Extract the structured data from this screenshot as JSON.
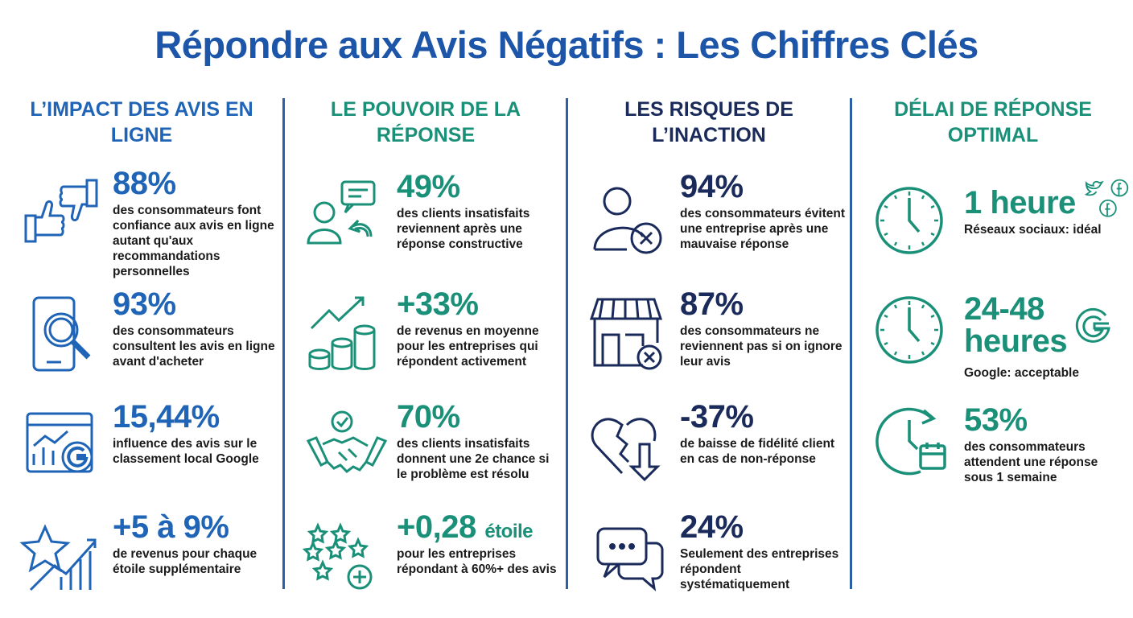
{
  "title": "Répondre aux Avis Négatifs : Les Chiffres Clés",
  "colors": {
    "blue": "#1f64b6",
    "green": "#1a9079",
    "navy": "#1a2a5a",
    "divider": "#2b5fa6"
  },
  "columns": [
    {
      "heading": "L’impact des avis en ligne",
      "items": [
        {
          "value": "88%",
          "text": "des consommateurs font confiance aux avis en ligne autant qu'aux recommandations personnelles",
          "icon": "thumbs-up-down-icon"
        },
        {
          "value": "93%",
          "text": "des consommateurs consultent les avis en ligne avant d'acheter",
          "icon": "phone-magnifier-icon"
        },
        {
          "value": "15,44%",
          "text": "influence des avis sur le classement local Google",
          "icon": "google-chart-icon"
        },
        {
          "value": "+5 à 9%",
          "text": "de revenus pour chaque étoile supplémentaire",
          "icon": "star-growth-icon"
        }
      ]
    },
    {
      "heading": "Le pouvoir de la réponse",
      "items": [
        {
          "value": "49%",
          "text": "des clients insatisfaits reviennent après une réponse constructive",
          "icon": "user-reply-icon"
        },
        {
          "value": "+33%",
          "text": "de revenus en moyenne pour les entreprises qui répondent activement",
          "icon": "coins-growth-icon"
        },
        {
          "value": "70%",
          "text": "des clients insatisfaits donnent une 2e chance si le problème est résolu",
          "icon": "handshake-icon"
        },
        {
          "value": "+0,28",
          "unit": "étoile",
          "text": "pour les entreprises répondant à 60%+ des avis",
          "icon": "stars-plus-icon"
        }
      ]
    },
    {
      "heading": "Les risques de l’inaction",
      "items": [
        {
          "value": "94%",
          "text": "des consommateurs évitent une entreprise après une mauvaise réponse",
          "icon": "user-x-icon"
        },
        {
          "value": "87%",
          "text": "des consommateurs ne reviennent pas si on ignore leur avis",
          "icon": "store-x-icon"
        },
        {
          "value": "-37%",
          "text": "de baisse de fidélité client en cas de non-réponse",
          "icon": "broken-heart-icon"
        },
        {
          "value": "24%",
          "text": "Seulement des entreprises répondent systématiquement",
          "icon": "chat-bubbles-icon"
        }
      ]
    },
    {
      "heading": "Délai de réponse optimal",
      "items": [
        {
          "value": "1 heure",
          "text": "Réseaux sociaux: idéal",
          "icon": "clock-icon"
        },
        {
          "value": "24-48 heures",
          "text": "Google: acceptable",
          "icon": "clock-icon"
        },
        {
          "value": "53%",
          "text": "des consommateurs attendent une réponse sous 1 semaine",
          "icon": "clock-calendar-icon"
        }
      ]
    }
  ]
}
